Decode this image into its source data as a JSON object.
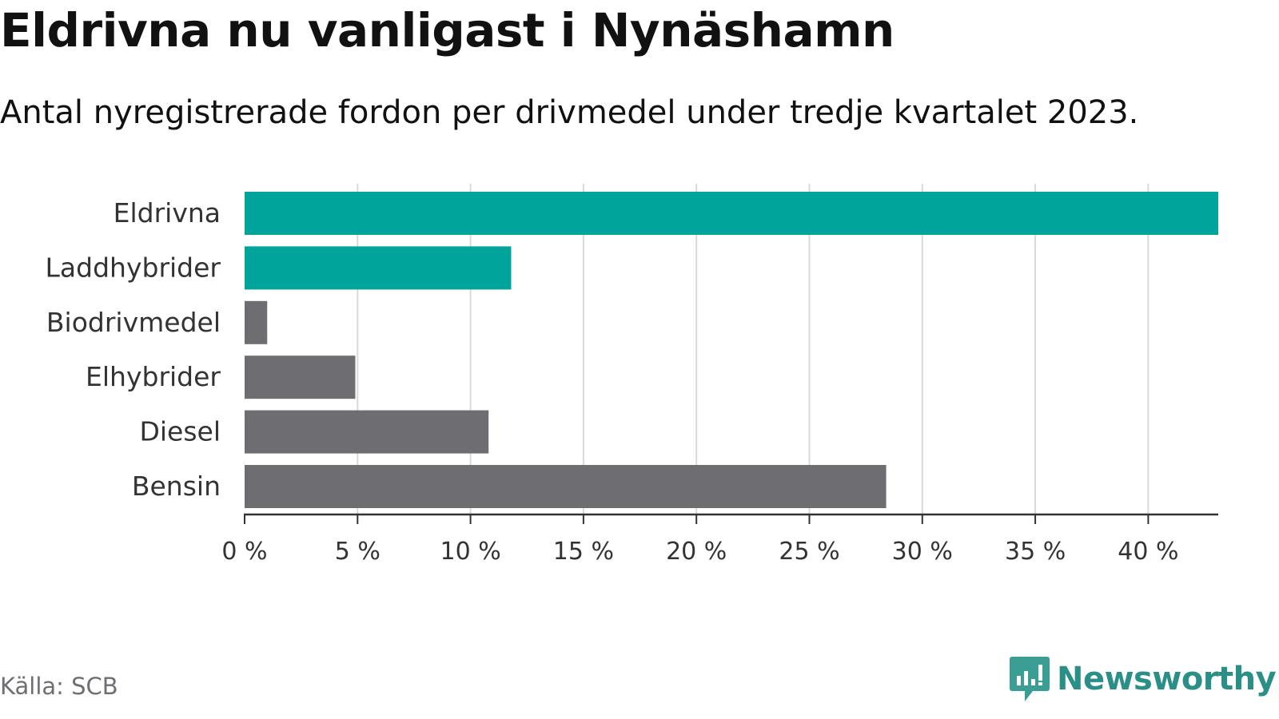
{
  "header": {
    "title": "Eldrivna nu vanligast i Nynäshamn",
    "subtitle": "Antal nyregistrerade fordon per drivmedel under tredje kvartalet 2023."
  },
  "footer": {
    "source": "Källa: SCB",
    "brand": "Newsworthy",
    "brand_icon": "chart-bubble-icon"
  },
  "colors": {
    "highlight": "#00a49a",
    "default": "#6e6d72",
    "grid": "#d9d9d9",
    "axis": "#333333",
    "brand": "#2a8f86"
  },
  "chart_data": {
    "type": "bar",
    "orientation": "horizontal",
    "categories": [
      "Eldrivna",
      "Laddhybrider",
      "Biodrivmedel",
      "Elhybrider",
      "Diesel",
      "Bensin"
    ],
    "values": [
      43.1,
      11.8,
      1.0,
      4.9,
      10.8,
      28.4
    ],
    "highlighted": [
      true,
      true,
      false,
      false,
      false,
      false
    ],
    "x_ticks": [
      "0 %",
      "5 %",
      "10 %",
      "15 %",
      "20 %",
      "25 %",
      "30 %",
      "35 %",
      "40 %"
    ],
    "x_tick_values": [
      0,
      5,
      10,
      15,
      20,
      25,
      30,
      35,
      40
    ],
    "xlim": [
      0,
      43.1
    ],
    "xlabel": "",
    "ylabel": "",
    "grid": true,
    "legend": "none"
  }
}
